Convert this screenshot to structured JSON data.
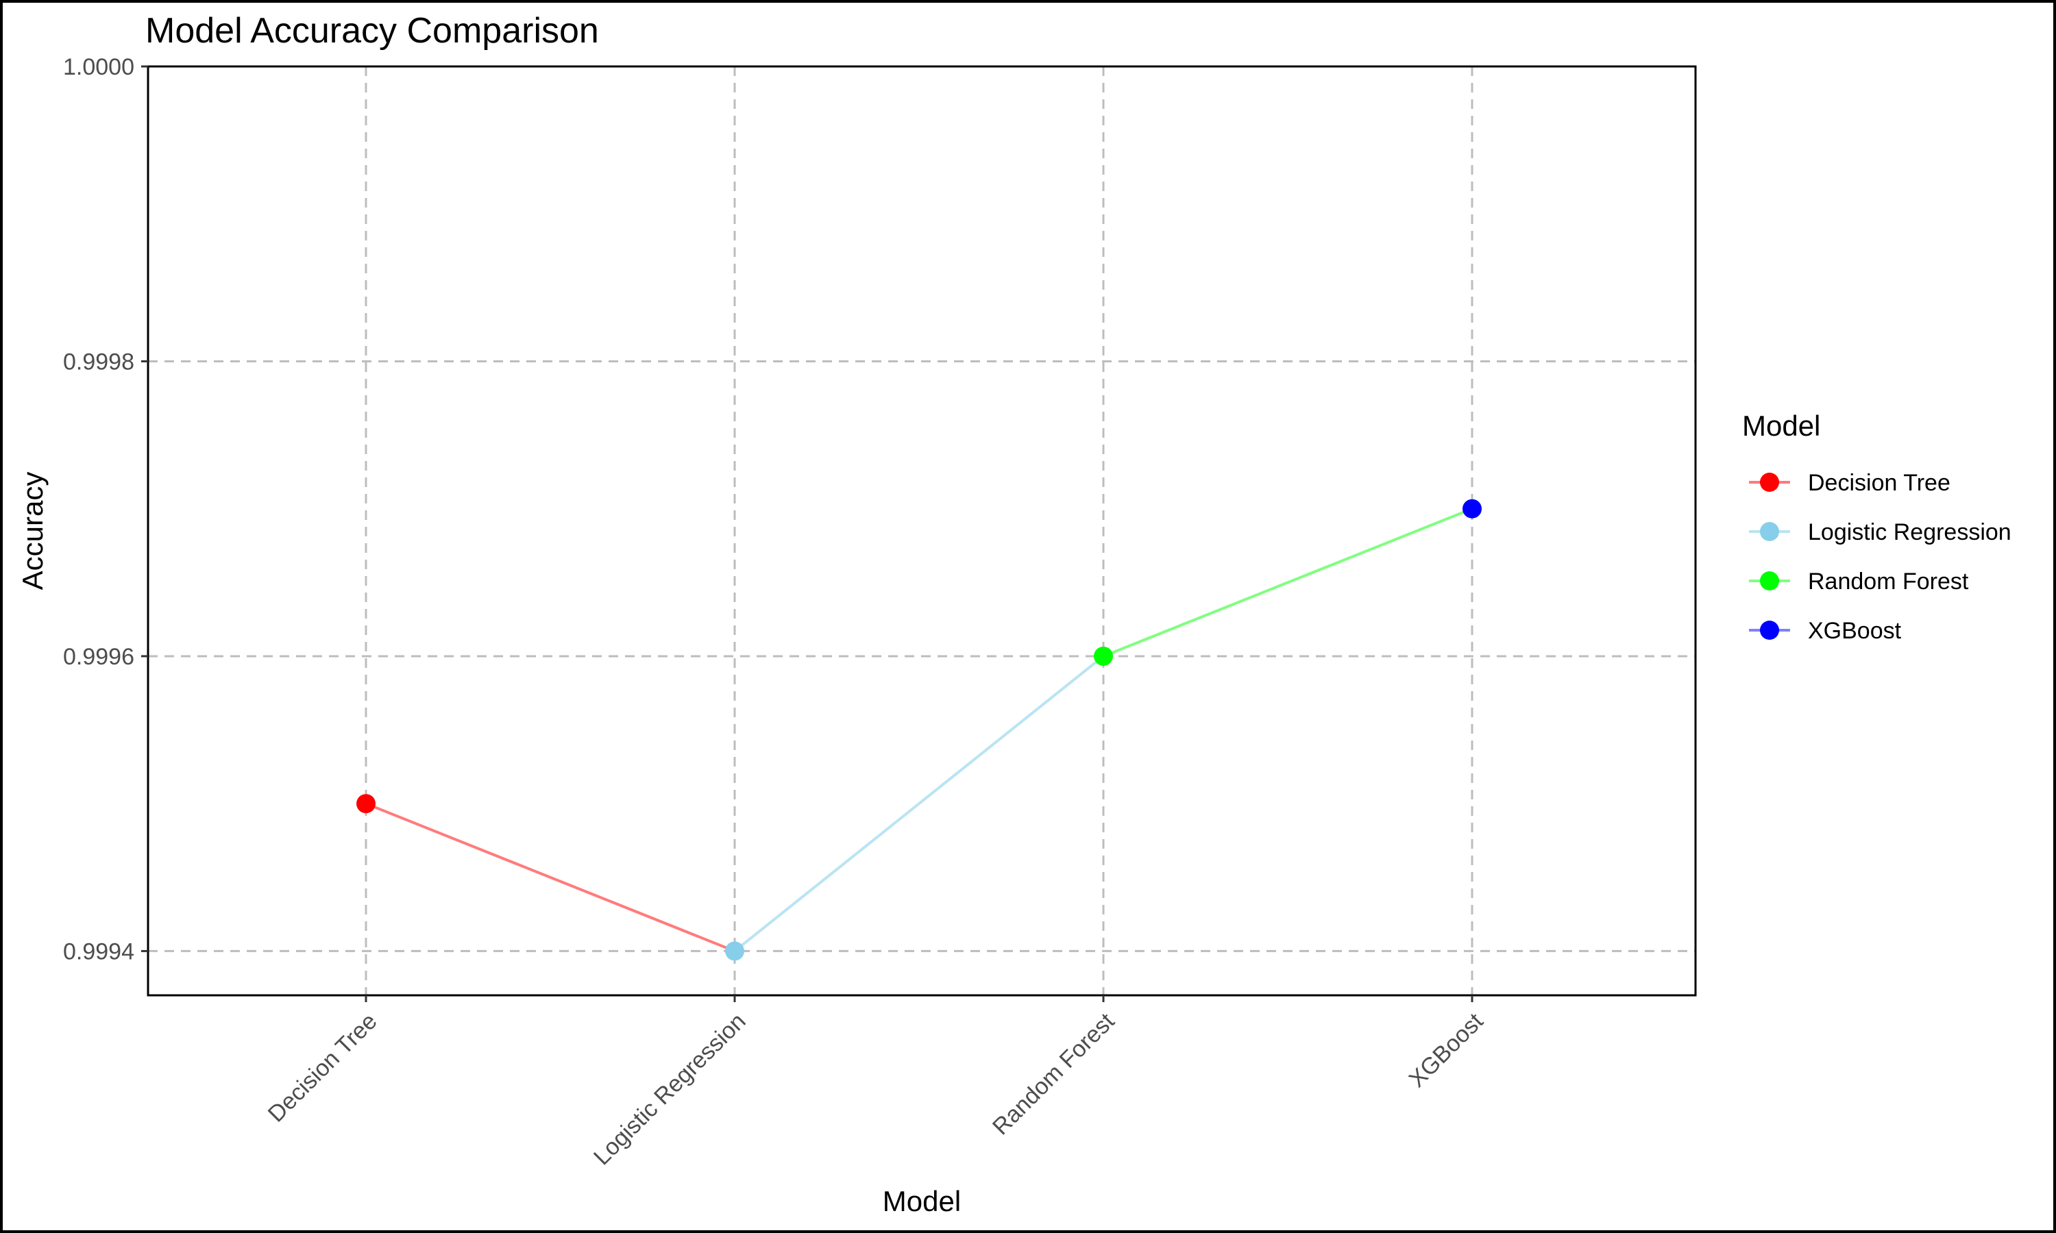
{
  "chart_data": {
    "type": "line",
    "title": "Model Accuracy Comparison",
    "xlabel": "Model",
    "ylabel": "Accuracy",
    "categories": [
      "Decision Tree",
      "Logistic Regression",
      "Random Forest",
      "XGBoost"
    ],
    "values": [
      0.9995,
      0.9994,
      0.9996,
      0.9997
    ],
    "ylim": [
      0.99937,
      1.0
    ],
    "yticks": [
      0.9994,
      0.9996,
      0.9998,
      1.0
    ],
    "ytick_labels": [
      "0.9994",
      "0.9996",
      "0.9998",
      "1.0000"
    ],
    "grid": "dashed major gridlines",
    "legend": {
      "title": "Model",
      "placement": "right",
      "entries": [
        "Decision Tree",
        "Logistic Regression",
        "Random Forest",
        "XGBoost"
      ]
    },
    "colors": {
      "Decision Tree": "#ff0000",
      "Logistic Regression": "#87ceeb",
      "Random Forest": "#00ff00",
      "XGBoost": "#0000ff"
    },
    "segment_colors": {
      "Decision Tree": "#ff7b7b",
      "Logistic Regression": "#b9e4f2",
      "Random Forest": "#80ff80",
      "XGBoost": "#8080ff"
    }
  }
}
